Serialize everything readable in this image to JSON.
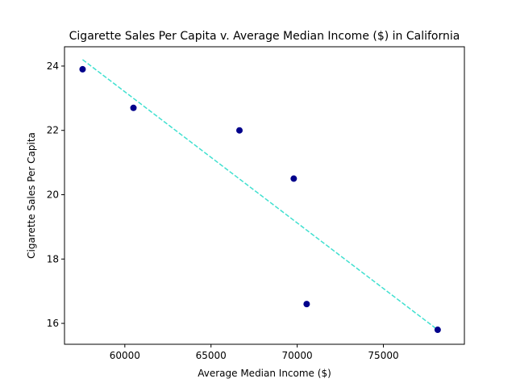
{
  "chart_data": {
    "type": "scatter",
    "title": "Cigarette Sales Per Capita v. Average Median Income ($) in California",
    "xlabel": "Average Median Income ($)",
    "ylabel": "Cigarette Sales Per Capita",
    "xlim": [
      56500,
      79700
    ],
    "ylim": [
      15.35,
      24.6
    ],
    "xticks": [
      60000,
      65000,
      70000,
      75000
    ],
    "yticks": [
      16,
      18,
      20,
      22,
      24
    ],
    "grid": false,
    "series": [
      {
        "kind": "points",
        "color": "#00008b",
        "x": [
          57550,
          60500,
          66650,
          69800,
          70550,
          78150
        ],
        "y": [
          23.9,
          22.7,
          22.0,
          20.5,
          16.6,
          15.8
        ]
      },
      {
        "kind": "trendline",
        "color": "#40e0d0",
        "style": "dashed",
        "x": [
          57550,
          78150
        ],
        "y": [
          24.2,
          15.8
        ]
      }
    ]
  }
}
